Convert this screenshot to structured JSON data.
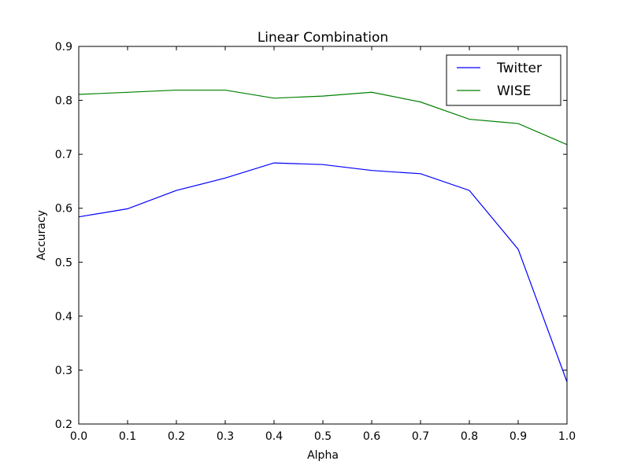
{
  "chart_data": {
    "type": "line",
    "title": "Linear Combination",
    "xlabel": "Alpha",
    "ylabel": "Accuracy",
    "xlim": [
      0.0,
      1.0
    ],
    "ylim": [
      0.2,
      0.9
    ],
    "x": [
      0.0,
      0.1,
      0.2,
      0.3,
      0.4,
      0.5,
      0.6,
      0.7,
      0.8,
      0.9,
      1.0
    ],
    "xticks": [
      "0.0",
      "0.1",
      "0.2",
      "0.3",
      "0.4",
      "0.5",
      "0.6",
      "0.7",
      "0.8",
      "0.9",
      "1.0"
    ],
    "yticks": [
      "0.2",
      "0.3",
      "0.4",
      "0.5",
      "0.6",
      "0.7",
      "0.8",
      "0.9"
    ],
    "grid": false,
    "legend_position": "top-right",
    "series": [
      {
        "name": "Twitter",
        "color": "#0000ff",
        "values": [
          0.584,
          0.599,
          0.633,
          0.656,
          0.684,
          0.681,
          0.67,
          0.664,
          0.633,
          0.524,
          0.278
        ]
      },
      {
        "name": "WISE",
        "color": "#008000",
        "values": [
          0.811,
          0.815,
          0.819,
          0.819,
          0.804,
          0.808,
          0.815,
          0.797,
          0.765,
          0.757,
          0.718
        ]
      }
    ]
  }
}
